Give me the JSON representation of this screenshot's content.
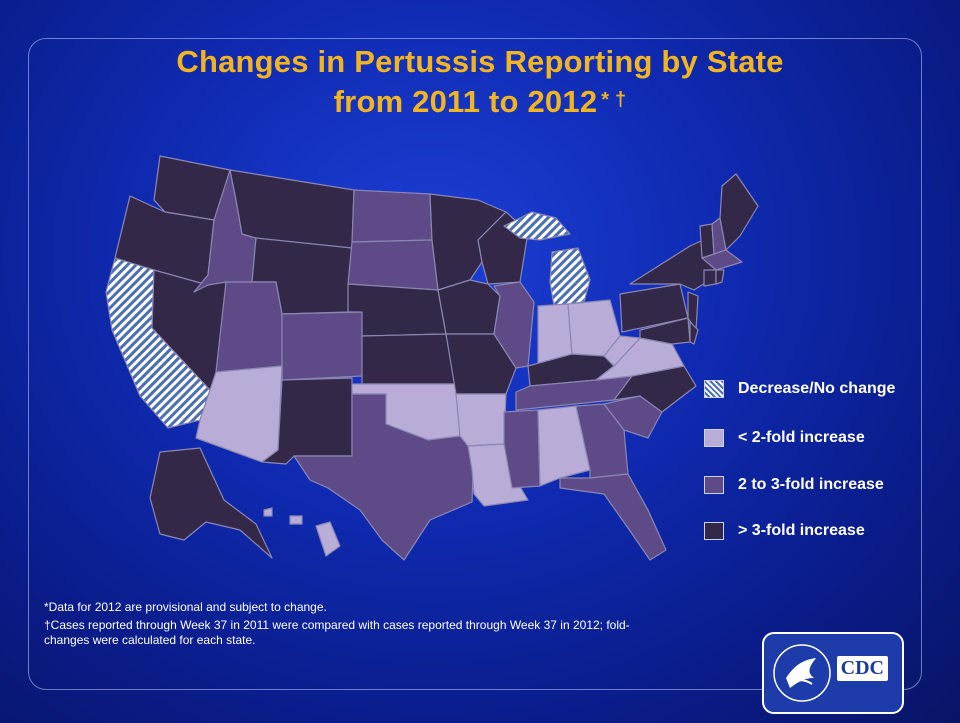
{
  "title": {
    "line1": "Changes in Pertussis Reporting by State",
    "line2": "from 2011 to 2012",
    "marks": "* †"
  },
  "colors": {
    "decrease_no_change": "#ffffff / #4b6fb0 hatched",
    "lt_2_fold": "#b9add8",
    "two_to_3_fold": "#5d4a86",
    "gt_3_fold": "#342848"
  },
  "legend": [
    {
      "key": "dec",
      "label": "Decrease/No change"
    },
    {
      "key": "lt2",
      "label": "< 2-fold increase"
    },
    {
      "key": "2to3",
      "label": "2 to 3-fold increase"
    },
    {
      "key": "gt3",
      "label": "> 3-fold increase"
    }
  ],
  "state_categories": {
    "CA": "dec",
    "MI": "dec",
    "AZ": "lt2",
    "OK": "lt2",
    "AR": "lt2",
    "LA": "lt2",
    "AL": "lt2",
    "IN": "lt2",
    "OH": "lt2",
    "WV": "lt2",
    "VA": "lt2",
    "HI": "lt2",
    "ID": "2to3",
    "UT": "2to3",
    "CO": "2to3",
    "ND": "2to3",
    "SD": "2to3",
    "TX": "2to3",
    "IL": "2to3",
    "TN": "2to3",
    "MS": "2to3",
    "GA": "2to3",
    "SC": "2to3",
    "FL": "2to3",
    "NH": "2to3",
    "MA": "2to3",
    "WA": "gt3",
    "OR": "gt3",
    "NV": "gt3",
    "MT": "gt3",
    "WY": "gt3",
    "NM": "gt3",
    "NE": "gt3",
    "KS": "gt3",
    "MN": "gt3",
    "IA": "gt3",
    "MO": "gt3",
    "WI": "gt3",
    "KY": "gt3",
    "NC": "gt3",
    "PA": "gt3",
    "NY": "gt3",
    "VT": "gt3",
    "ME": "gt3",
    "NJ": "gt3",
    "MD": "gt3",
    "DE": "gt3",
    "CT": "gt3",
    "RI": "gt3",
    "AK": "gt3"
  },
  "footnotes": {
    "note1": "*Data  for 2012  are provisional and subject to change.",
    "note2": "†Cases reported through Week 37 in 2011  were compared with cases reported through Week 37 in 2012; fold-changes were calculated for each state."
  },
  "logo": {
    "text": "CDC",
    "icon": "hhs-eagle-icon"
  }
}
